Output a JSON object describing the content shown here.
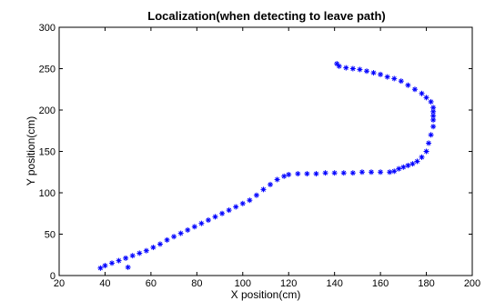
{
  "chart_data": {
    "type": "scatter",
    "title": "Localization(when detecting to leave path)",
    "xlabel": "X position(cm)",
    "ylabel": "Y position(cm)",
    "xlim": [
      20,
      200
    ],
    "ylim": [
      0,
      300
    ],
    "xticks": [
      20,
      40,
      60,
      80,
      100,
      120,
      140,
      160,
      180,
      200
    ],
    "yticks": [
      0,
      50,
      100,
      150,
      200,
      250,
      300
    ],
    "grid": false,
    "marker": "asterisk",
    "marker_color": "#0000ff",
    "series": [
      {
        "x": [
          38,
          40,
          43,
          46,
          49,
          52,
          55,
          58,
          61,
          64,
          67,
          70,
          73,
          76,
          79,
          82,
          85,
          88,
          91,
          94,
          97,
          100,
          103,
          106,
          109,
          112,
          115,
          118,
          120,
          124,
          128,
          132,
          136,
          140,
          144,
          148,
          152,
          156,
          160,
          164,
          166,
          168,
          170,
          172,
          174,
          176,
          178,
          180,
          181,
          182,
          183,
          183,
          183,
          183,
          183,
          182,
          180,
          178,
          175,
          172,
          169,
          166,
          163,
          160,
          157,
          154,
          151,
          148,
          145,
          142,
          141
        ],
        "y": [
          9,
          12,
          15,
          18,
          21,
          24,
          27,
          30,
          34,
          38,
          43,
          47,
          51,
          55,
          59,
          63,
          67,
          71,
          75,
          79,
          83,
          87,
          91,
          97,
          104,
          110,
          116,
          120,
          122,
          123,
          123,
          123,
          124,
          124,
          124,
          124,
          125,
          125,
          125,
          125,
          126,
          129,
          131,
          133,
          135,
          138,
          143,
          150,
          160,
          170,
          180,
          188,
          193,
          198,
          203,
          210,
          215,
          220,
          225,
          230,
          235,
          238,
          240,
          243,
          245,
          247,
          249,
          250,
          251,
          253,
          256
        ]
      },
      {
        "x": [
          50
        ],
        "y": [
          10
        ]
      }
    ]
  }
}
